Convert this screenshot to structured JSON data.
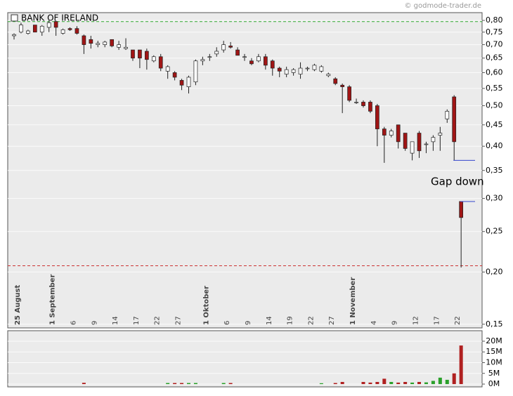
{
  "chart_data": {
    "type": "candlestick",
    "title": "BANK OF IRELAND",
    "source": "© godmode-trader.de",
    "annotation": "Gap down",
    "categories": [
      null,
      "25 August",
      null,
      null,
      null,
      null,
      "1 September",
      null,
      null,
      "6",
      null,
      null,
      "9",
      null,
      null,
      "14",
      null,
      null,
      "17",
      null,
      null,
      "22",
      null,
      null,
      "27",
      null,
      null,
      null,
      "1 Oktober",
      null,
      null,
      "6",
      null,
      null,
      "9",
      null,
      null,
      "14",
      null,
      null,
      "19",
      null,
      null,
      "22",
      null,
      null,
      "27",
      null,
      null,
      "1 November",
      null,
      null,
      "4",
      null,
      null,
      "9",
      null,
      null,
      "12",
      null,
      null,
      "17",
      null,
      null,
      "22"
    ],
    "open": [
      0.735,
      0.75,
      0.745,
      0.78,
      0.75,
      0.77,
      0.795,
      0.745,
      0.765,
      0.765,
      0.735,
      0.72,
      0.7,
      0.7,
      0.72,
      0.69,
      0.685,
      0.68,
      0.68,
      0.675,
      0.64,
      0.655,
      0.605,
      0.6,
      0.575,
      0.555,
      0.57,
      0.64,
      0.655,
      0.665,
      0.68,
      0.695,
      0.68,
      0.655,
      0.64,
      0.64,
      0.655,
      0.64,
      0.615,
      0.595,
      0.6,
      0.595,
      0.615,
      0.61,
      0.605,
      0.59,
      0.58,
      0.56,
      0.555,
      0.51,
      0.51,
      0.51,
      0.5,
      0.44,
      0.425,
      0.45,
      0.43,
      0.385,
      0.43,
      0.405,
      0.41,
      0.425,
      0.465,
      0.525,
      0.295
    ],
    "high": [
      0.745,
      0.79,
      0.76,
      0.78,
      0.78,
      0.8,
      0.8,
      0.765,
      0.77,
      0.775,
      0.74,
      0.735,
      0.715,
      0.715,
      0.72,
      0.715,
      0.725,
      0.68,
      0.68,
      0.685,
      0.66,
      0.665,
      0.625,
      0.605,
      0.58,
      0.59,
      0.645,
      0.655,
      0.665,
      0.69,
      0.715,
      0.71,
      0.69,
      0.665,
      0.65,
      0.665,
      0.665,
      0.645,
      0.62,
      0.62,
      0.615,
      0.635,
      0.62,
      0.63,
      0.625,
      0.6,
      0.585,
      0.565,
      0.56,
      0.52,
      0.515,
      0.515,
      0.505,
      0.445,
      0.44,
      0.45,
      0.43,
      0.41,
      0.435,
      0.41,
      0.425,
      0.445,
      0.49,
      0.53,
      0.295
    ],
    "low": [
      0.72,
      0.745,
      0.74,
      0.75,
      0.735,
      0.75,
      0.735,
      0.74,
      0.755,
      0.74,
      0.665,
      0.685,
      0.69,
      0.69,
      0.69,
      0.68,
      0.68,
      0.64,
      0.615,
      0.61,
      0.635,
      0.605,
      0.58,
      0.575,
      0.545,
      0.535,
      0.56,
      0.625,
      0.64,
      0.655,
      0.67,
      0.685,
      0.66,
      0.64,
      0.625,
      0.635,
      0.61,
      0.59,
      0.585,
      0.585,
      0.59,
      0.58,
      0.605,
      0.605,
      0.6,
      0.585,
      0.56,
      0.48,
      0.51,
      0.505,
      0.495,
      0.48,
      0.4,
      0.365,
      0.42,
      0.395,
      0.39,
      0.37,
      0.375,
      0.385,
      0.39,
      0.39,
      0.455,
      0.37,
      0.205
    ],
    "close": [
      0.74,
      0.78,
      0.755,
      0.75,
      0.775,
      0.79,
      0.77,
      0.76,
      0.76,
      0.745,
      0.7,
      0.705,
      0.705,
      0.71,
      0.695,
      0.7,
      0.69,
      0.65,
      0.65,
      0.645,
      0.655,
      0.615,
      0.62,
      0.585,
      0.56,
      0.585,
      0.64,
      0.645,
      0.655,
      0.675,
      0.7,
      0.69,
      0.66,
      0.655,
      0.63,
      0.655,
      0.625,
      0.615,
      0.605,
      0.61,
      0.61,
      0.615,
      0.615,
      0.625,
      0.62,
      0.595,
      0.565,
      0.555,
      0.515,
      0.51,
      0.5,
      0.485,
      0.44,
      0.425,
      0.435,
      0.41,
      0.395,
      0.41,
      0.39,
      0.405,
      0.42,
      0.43,
      0.485,
      0.41,
      0.27
    ],
    "up_color": "#ffffff",
    "down_color": "#a01515",
    "log_scale": true,
    "ylim": [
      0.147,
      0.835
    ],
    "yticks": [
      {
        "value": 0.8,
        "label": "0,80"
      },
      {
        "value": 0.75,
        "label": "0,75"
      },
      {
        "value": 0.7,
        "label": "0,70"
      },
      {
        "value": 0.65,
        "label": "0,65"
      },
      {
        "value": 0.6,
        "label": "0,60"
      },
      {
        "value": 0.55,
        "label": "0,55"
      },
      {
        "value": 0.5,
        "label": "0,50"
      },
      {
        "value": 0.45,
        "label": "0,45"
      },
      {
        "value": 0.4,
        "label": "0,40"
      },
      {
        "value": 0.35,
        "label": "0,35"
      },
      {
        "value": 0.3,
        "label": "0,30"
      },
      {
        "value": 0.25,
        "label": "0,25"
      },
      {
        "value": 0.2,
        "label": "0,20"
      },
      {
        "value": 0.15,
        "label": "0,15"
      }
    ],
    "grid": true,
    "reference_lines": [
      {
        "value": 0.795,
        "color": "#33aa33"
      },
      {
        "value": 0.207,
        "color": "#cc3333"
      }
    ],
    "gap_lines": {
      "values": [
        0.37,
        0.295
      ],
      "color": "#3344cc"
    },
    "volume": {
      "values": [
        0,
        0,
        0,
        0,
        0,
        0,
        0,
        0,
        0,
        0,
        600000,
        0,
        0,
        0,
        0,
        0,
        0,
        0,
        0,
        0,
        0,
        0,
        500000,
        500000,
        500000,
        500000,
        500000,
        0,
        0,
        0,
        500000,
        500000,
        0,
        0,
        0,
        0,
        0,
        0,
        0,
        0,
        0,
        0,
        0,
        0,
        400000,
        0,
        500000,
        1000000,
        0,
        0,
        1000000,
        700000,
        1000000,
        2500000,
        1000000,
        700000,
        1000000,
        700000,
        1000000,
        800000,
        1500000,
        3000000,
        2000000,
        5000000,
        18000000
      ],
      "up_color": "#2aa02a",
      "down_color": "#b02020",
      "ylim": [
        -1300000,
        24900000
      ],
      "yticks": [
        {
          "value": 0,
          "label": "0M"
        },
        {
          "value": 5000000,
          "label": "5M"
        },
        {
          "value": 10000000,
          "label": "10M"
        },
        {
          "value": 15000000,
          "label": "15M"
        },
        {
          "value": 20000000,
          "label": "20M"
        }
      ]
    }
  }
}
